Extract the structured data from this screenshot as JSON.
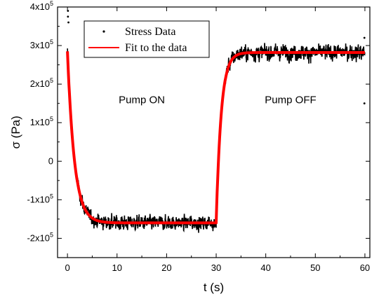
{
  "chart_data": {
    "type": "line",
    "xlabel": "t (s)",
    "ylabel": "σ (Pa)",
    "xlim": [
      -2,
      61
    ],
    "ylim": [
      -250000,
      400000
    ],
    "x_ticks": [
      0,
      10,
      20,
      30,
      40,
      50,
      60
    ],
    "y_ticks": [
      {
        "value": 400000,
        "mant": "4x10",
        "exp": "5"
      },
      {
        "value": 300000,
        "mant": "3x10",
        "exp": "5"
      },
      {
        "value": 200000,
        "mant": "2x10",
        "exp": "5"
      },
      {
        "value": 100000,
        "mant": "1x10",
        "exp": "5"
      },
      {
        "value": 0,
        "mant": "0",
        "exp": ""
      },
      {
        "value": -100000,
        "mant": "-1x10",
        "exp": "5"
      },
      {
        "value": -200000,
        "mant": "-2x10",
        "exp": "5"
      }
    ],
    "legend": {
      "position": "top-left"
    },
    "series": [
      {
        "name": "Stress Data",
        "style": "scatter",
        "color": "#000000",
        "segments": [
          {
            "t_start": 0,
            "t_end": 30,
            "start": 285000,
            "end": -160000,
            "tau": 1.4,
            "noise": 18000
          },
          {
            "t_start": 30,
            "t_end": 60,
            "start": -160000,
            "end": 282000,
            "tau": 1.0,
            "noise": 20000
          }
        ],
        "outliers": [
          {
            "x": 0.1,
            "y": 375000
          },
          {
            "x": 0.1,
            "y": 390000
          },
          {
            "x": 0.2,
            "y": 360000
          },
          {
            "x": 59.9,
            "y": 320000
          },
          {
            "x": 59.9,
            "y": 150000
          }
        ]
      },
      {
        "name": "Fit to the data",
        "style": "line",
        "color": "#ff0000",
        "segments": [
          {
            "t_start": 0,
            "t_end": 30,
            "start": 285000,
            "end": -160000,
            "tau": 1.4
          },
          {
            "t_start": 30,
            "t_end": 60,
            "start": -160000,
            "end": 282000,
            "tau": 1.0
          }
        ]
      }
    ],
    "annotations": [
      {
        "text": "Pump ON",
        "x": 15,
        "y": 150000
      },
      {
        "text": "Pump OFF",
        "x": 45,
        "y": 150000
      }
    ]
  }
}
